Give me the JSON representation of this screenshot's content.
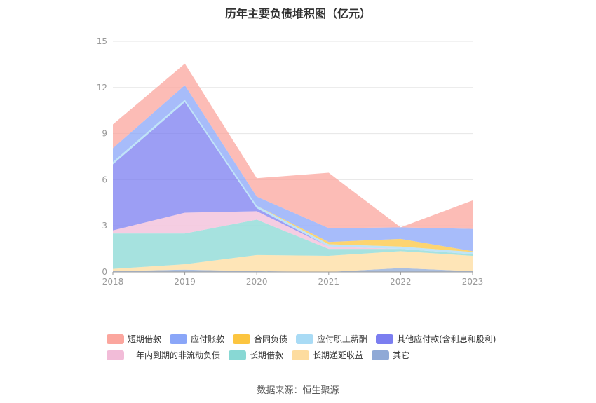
{
  "chart_data": {
    "type": "area",
    "title": "历年主要负债堆积图（亿元）",
    "x": [
      "2018",
      "2019",
      "2020",
      "2021",
      "2022",
      "2023"
    ],
    "ylim": [
      0,
      15
    ],
    "yticks": [
      0,
      3,
      6,
      9,
      12,
      15
    ],
    "stacked": true,
    "grid": true,
    "legend_position": "bottom",
    "series": [
      {
        "name": "其它",
        "color": "#8fa9d6",
        "values": [
          0.05,
          0.15,
          0.05,
          0.0,
          0.25,
          0.05
        ]
      },
      {
        "name": "长期递延收益",
        "color": "#fddc9f",
        "values": [
          0.15,
          0.35,
          1.05,
          1.05,
          1.1,
          1.0
        ]
      },
      {
        "name": "长期借款",
        "color": "#88d8d4",
        "values": [
          2.3,
          2.0,
          2.3,
          0.45,
          0.15,
          0.1
        ]
      },
      {
        "name": "一年内到期的非流动负债",
        "color": "#f2bcd8",
        "values": [
          0.2,
          1.35,
          0.55,
          0.15,
          0.0,
          0.0
        ]
      },
      {
        "name": "其他应付款(含利息和股利)",
        "color": "#7b7ef0",
        "values": [
          4.3,
          7.2,
          0.2,
          0.0,
          0.0,
          0.0
        ]
      },
      {
        "name": "应付职工薪酬",
        "color": "#a9dbf5",
        "values": [
          0.15,
          0.15,
          0.15,
          0.15,
          0.15,
          0.15
        ]
      },
      {
        "name": "合同负债",
        "color": "#fcc540",
        "values": [
          0.0,
          0.0,
          0.0,
          0.15,
          0.5,
          0.05
        ]
      },
      {
        "name": "应付账款",
        "color": "#8aa6f8",
        "values": [
          0.9,
          0.95,
          0.6,
          0.9,
          0.75,
          1.45
        ]
      },
      {
        "name": "短期借款",
        "color": "#fba69e",
        "values": [
          1.55,
          1.4,
          1.2,
          3.6,
          0.0,
          1.85
        ]
      }
    ]
  },
  "legend": {
    "row1": [
      {
        "label": "短期借款",
        "color": "#fba69e"
      },
      {
        "label": "应付账款",
        "color": "#8aa6f8"
      },
      {
        "label": "合同负债",
        "color": "#fcc540"
      },
      {
        "label": "应付职工薪酬",
        "color": "#a9dbf5"
      },
      {
        "label": "其他应付款(含利息和股利)",
        "color": "#7b7ef0"
      }
    ],
    "row2": [
      {
        "label": "一年内到期的非流动负债",
        "color": "#f2bcd8"
      },
      {
        "label": "长期借款",
        "color": "#88d8d4"
      },
      {
        "label": "长期递延收益",
        "color": "#fddc9f"
      },
      {
        "label": "其它",
        "color": "#8fa9d6"
      }
    ]
  },
  "footer": {
    "source": "数据来源：恒生聚源"
  }
}
